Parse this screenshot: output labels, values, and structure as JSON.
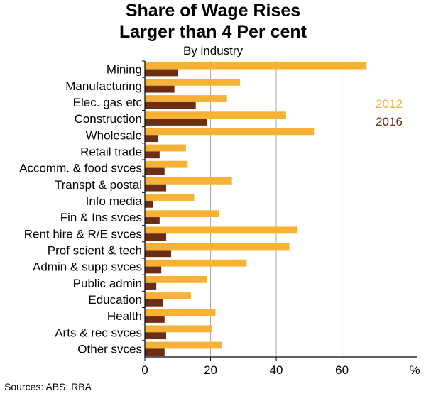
{
  "chart_data": {
    "type": "bar",
    "orientation": "horizontal",
    "title_line1": "Share of Wage Rises",
    "title_line2": "Larger than 4 Per cent",
    "subtitle": "By industry",
    "unit": "%",
    "categories": [
      "Mining",
      "Manufacturing",
      "Elec. gas etc",
      "Construction",
      "Wholesale",
      "Retail trade",
      "Accomm. & food svces",
      "Transpt & postal",
      "Info media",
      "Fin & Ins svces",
      "Rent hire & R/E svces",
      "Prof scient & tech",
      "Admin & supp svces",
      "Public admin",
      "Education",
      "Health",
      "Arts & rec svces",
      "Other svces"
    ],
    "series": [
      {
        "name": "2012",
        "color": "#F7B134",
        "values": [
          67.5,
          29,
          25,
          43,
          51.5,
          12.5,
          13,
          26.5,
          15,
          22.5,
          46.5,
          44,
          31,
          19,
          14,
          21.5,
          20.5,
          23.5
        ]
      },
      {
        "name": "2016",
        "color": "#6B2D14",
        "values": [
          10,
          9,
          15.5,
          19,
          4,
          4.5,
          6,
          6.5,
          2.5,
          4.5,
          6.5,
          8,
          5,
          3.5,
          5.5,
          6,
          6.5,
          6
        ]
      }
    ],
    "xlim": [
      0,
      83
    ],
    "xticks": [
      "0",
      "20",
      "40",
      "60"
    ],
    "xtick_values": [
      0,
      20,
      40,
      60
    ],
    "grid": true,
    "legend_position": "top-right"
  },
  "source_note": "Sources: ABS; RBA"
}
